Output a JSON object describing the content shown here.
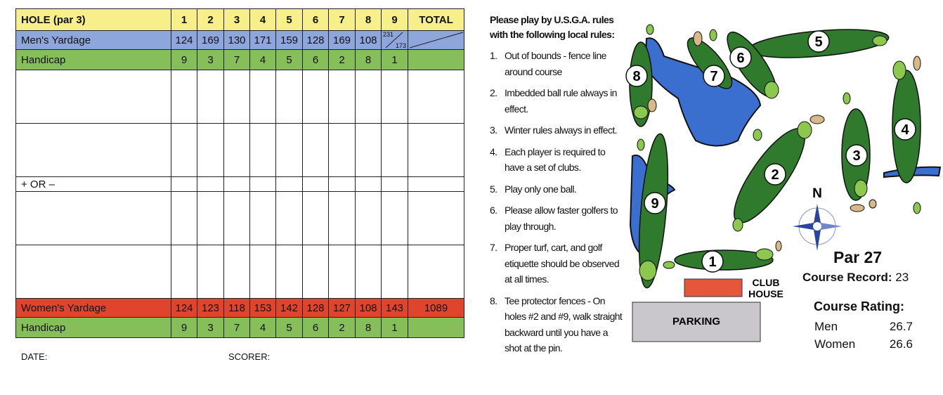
{
  "scorecard": {
    "header": {
      "label": "HOLE (par 3)",
      "holes": [
        "1",
        "2",
        "3",
        "4",
        "5",
        "6",
        "7",
        "8",
        "9"
      ],
      "total": "TOTAL"
    },
    "mens_yardage": {
      "label": "Men's Yardage",
      "values": [
        "124",
        "169",
        "130",
        "171",
        "159",
        "128",
        "169",
        "108"
      ],
      "hole9_upper": "231",
      "hole9_lower": "173",
      "total": ""
    },
    "handicap_top": {
      "label": "Handicap",
      "values": [
        "9",
        "3",
        "7",
        "4",
        "5",
        "6",
        "2",
        "8",
        "1"
      ],
      "total": ""
    },
    "plus_or_minus_label": "+ OR –",
    "womens_yardage": {
      "label": "Women's Yardage",
      "values": [
        "124",
        "123",
        "118",
        "153",
        "142",
        "128",
        "127",
        "108",
        "143"
      ],
      "total": "1089"
    },
    "handicap_bottom": {
      "label": "Handicap",
      "values": [
        "9",
        "3",
        "7",
        "4",
        "5",
        "6",
        "2",
        "8",
        "1"
      ],
      "total": ""
    },
    "date_label": "DATE:",
    "scorer_label": "SCORER:",
    "colors": {
      "header": "#f7f08a",
      "mens": "#8ea6dc",
      "handicap": "#86bf5a",
      "womens": "#e0442c"
    }
  },
  "rules": {
    "heading": "Please play by U.S.G.A. rules with the following local rules:",
    "items": [
      {
        "num": "1.",
        "text": "Out of bounds - fence line around course"
      },
      {
        "num": "2.",
        "text": "Imbedded ball rule always in effect."
      },
      {
        "num": "3.",
        "text": "Winter rules always in effect."
      },
      {
        "num": "4.",
        "text": "Each player is required to have a set of clubs."
      },
      {
        "num": "5.",
        "text": "Play only one ball."
      },
      {
        "num": "6.",
        "text": "Please allow faster golfers to play through."
      },
      {
        "num": "7.",
        "text": "Proper turf, cart, and golf etiquette should be observed at all times."
      },
      {
        "num": "8.",
        "text": "Tee protector fences - On holes #2 and #9, walk straight backward until you have a shot at the pin."
      }
    ]
  },
  "map": {
    "holes": [
      "1",
      "2",
      "3",
      "4",
      "5",
      "6",
      "7",
      "8",
      "9"
    ],
    "north": "N",
    "clubhouse_line1": "CLUB",
    "clubhouse_line2": "HOUSE",
    "parking": "PARKING",
    "colors": {
      "fairway": "#2f7a2c",
      "green": "#8cc84e",
      "water": "#3a6fd0",
      "sand": "#d9b98a",
      "clubhouse": "#e5573a",
      "parking": "#c9c6cc"
    }
  },
  "course_info": {
    "par": "Par 27",
    "record_label": "Course Record:",
    "record_value": "23",
    "rating_label": "Course Rating:",
    "ratings": [
      {
        "who": "Men",
        "value": "26.7"
      },
      {
        "who": "Women",
        "value": "26.6"
      }
    ]
  }
}
